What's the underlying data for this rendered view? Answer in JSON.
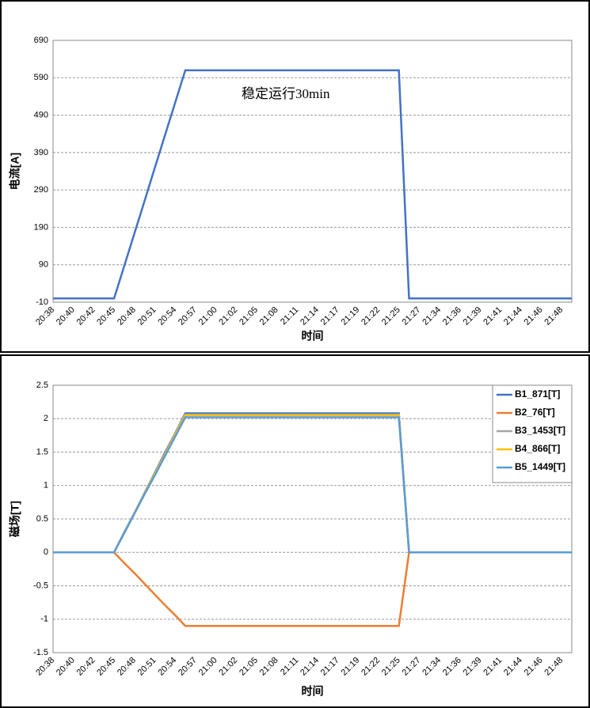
{
  "chart_data": [
    {
      "type": "line",
      "y_label": "电流[A]",
      "x_label": "时间",
      "annotation": "稳定运行30min",
      "categories": [
        "20:38",
        null,
        "20:40",
        null,
        "20:42",
        null,
        "20:45",
        null,
        "20:48",
        null,
        "20:51",
        null,
        "20:54",
        null,
        "20:57",
        null,
        "21:00",
        null,
        "21:02",
        null,
        "21:05",
        null,
        "21:08",
        null,
        "21:11",
        null,
        "21:14",
        null,
        "21:17",
        null,
        "21:19",
        null,
        "21:22",
        null,
        "21:25",
        null,
        "21:27",
        null,
        "21:34",
        null,
        "21:36",
        null,
        "21:39",
        null,
        "21:41",
        null,
        "21:44",
        null,
        "21:46",
        null,
        "21:48",
        null
      ],
      "values": [
        0,
        0,
        0,
        0,
        0,
        0,
        0,
        87,
        174,
        261,
        349,
        436,
        523,
        610,
        610,
        610,
        610,
        610,
        610,
        610,
        610,
        610,
        610,
        610,
        610,
        610,
        610,
        610,
        610,
        610,
        610,
        610,
        610,
        610,
        610,
        0,
        0,
        0,
        0,
        0,
        0,
        0,
        0,
        0,
        0,
        0,
        0,
        0,
        0,
        0,
        0,
        0
      ],
      "color": "#4472c4",
      "ylim": [
        -10,
        690
      ],
      "yticks": [
        -10,
        90,
        190,
        290,
        390,
        490,
        590,
        690
      ],
      "grid": true
    },
    {
      "type": "line",
      "y_label": "磁场[T]",
      "x_label": "时间",
      "legend": "upper right",
      "categories": [
        "20:38",
        null,
        "20:40",
        null,
        "20:42",
        null,
        "20:45",
        null,
        "20:48",
        null,
        "20:51",
        null,
        "20:54",
        null,
        "20:57",
        null,
        "21:00",
        null,
        "21:02",
        null,
        "21:05",
        null,
        "21:08",
        null,
        "21:11",
        null,
        "21:14",
        null,
        "21:17",
        null,
        "21:19",
        null,
        "21:22",
        null,
        "21:25",
        null,
        "21:27",
        null,
        "21:34",
        null,
        "21:36",
        null,
        "21:39",
        null,
        "21:41",
        null,
        "21:44",
        null,
        "21:46",
        null,
        "21:48",
        null
      ],
      "series": [
        {
          "name": "B1_871[T]",
          "color": "#4472c4",
          "values": [
            0,
            0,
            0,
            0,
            0,
            0,
            0,
            0.3,
            0.59,
            0.89,
            1.19,
            1.49,
            1.78,
            2.08,
            2.08,
            2.08,
            2.08,
            2.08,
            2.08,
            2.08,
            2.08,
            2.08,
            2.08,
            2.08,
            2.08,
            2.08,
            2.08,
            2.08,
            2.08,
            2.08,
            2.08,
            2.08,
            2.08,
            2.08,
            2.08,
            0,
            0,
            0,
            0,
            0,
            0,
            0,
            0,
            0,
            0,
            0,
            0,
            0,
            0,
            0,
            0,
            0
          ]
        },
        {
          "name": "B2_76[T]",
          "color": "#ed7d31",
          "values": [
            0,
            0,
            0,
            0,
            0,
            0,
            0,
            -0.16,
            -0.31,
            -0.47,
            -0.63,
            -0.79,
            -0.94,
            -1.1,
            -1.1,
            -1.1,
            -1.1,
            -1.1,
            -1.1,
            -1.1,
            -1.1,
            -1.1,
            -1.1,
            -1.1,
            -1.1,
            -1.1,
            -1.1,
            -1.1,
            -1.1,
            -1.1,
            -1.1,
            -1.1,
            -1.1,
            -1.1,
            -1.1,
            0,
            0,
            0,
            0,
            0,
            0,
            0,
            0,
            0,
            0,
            0,
            0,
            0,
            0,
            0,
            0,
            0
          ]
        },
        {
          "name": "B3_1453[T]",
          "color": "#a5a5a5",
          "values": [
            0,
            0,
            0,
            0,
            0,
            0,
            0,
            0.29,
            0.59,
            0.88,
            1.18,
            1.47,
            1.77,
            2.06,
            2.06,
            2.06,
            2.06,
            2.06,
            2.06,
            2.06,
            2.06,
            2.06,
            2.06,
            2.06,
            2.06,
            2.06,
            2.06,
            2.06,
            2.06,
            2.06,
            2.06,
            2.06,
            2.06,
            2.06,
            2.06,
            0,
            0,
            0,
            0,
            0,
            0,
            0,
            0,
            0,
            0,
            0,
            0,
            0,
            0,
            0,
            0,
            0
          ]
        },
        {
          "name": "B4_866[T]",
          "color": "#ffc000",
          "values": [
            0,
            0,
            0,
            0,
            0,
            0,
            0,
            0.29,
            0.59,
            0.88,
            1.17,
            1.46,
            1.76,
            2.05,
            2.05,
            2.05,
            2.05,
            2.05,
            2.05,
            2.05,
            2.05,
            2.05,
            2.05,
            2.05,
            2.05,
            2.05,
            2.05,
            2.05,
            2.05,
            2.05,
            2.05,
            2.05,
            2.05,
            2.05,
            2.05,
            0,
            0,
            0,
            0,
            0,
            0,
            0,
            0,
            0,
            0,
            0,
            0,
            0,
            0,
            0,
            0,
            0
          ]
        },
        {
          "name": "B5_1449[T]",
          "color": "#5b9bd5",
          "values": [
            0,
            0,
            0,
            0,
            0,
            0,
            0,
            0.29,
            0.58,
            0.87,
            1.15,
            1.44,
            1.73,
            2.02,
            2.02,
            2.02,
            2.02,
            2.02,
            2.02,
            2.02,
            2.02,
            2.02,
            2.02,
            2.02,
            2.02,
            2.02,
            2.02,
            2.02,
            2.02,
            2.02,
            2.02,
            2.02,
            2.02,
            2.02,
            2.02,
            0,
            0,
            0,
            0,
            0,
            0,
            0,
            0,
            0,
            0,
            0,
            0,
            0,
            0,
            0,
            0,
            0
          ]
        }
      ],
      "ylim": [
        -1.5,
        2.5
      ],
      "yticks": [
        -1.5,
        -1,
        -0.5,
        0,
        0.5,
        1,
        1.5,
        2,
        2.5
      ],
      "grid": true
    }
  ]
}
